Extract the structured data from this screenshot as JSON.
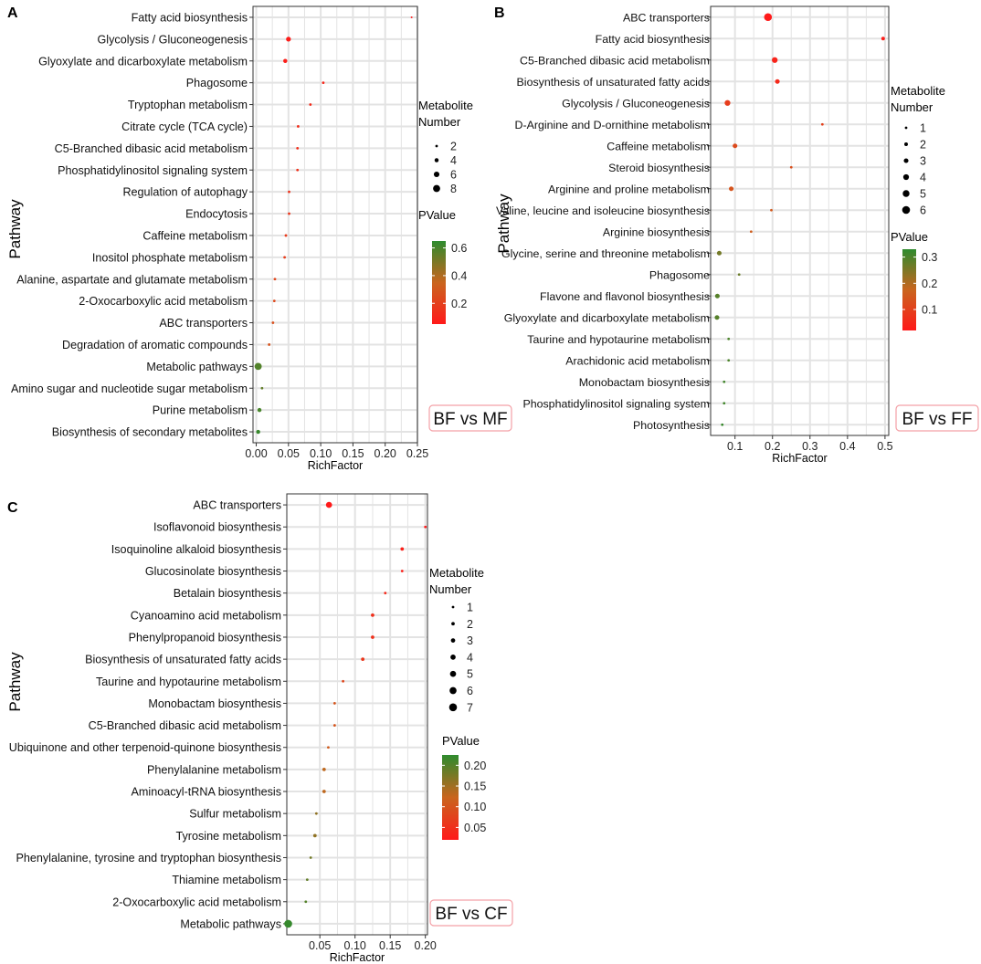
{
  "colors": {
    "low": "#ff1a1a",
    "mid": "#c9651e",
    "high": "#2e8b2e",
    "grid": "#e3e3e3",
    "badge_border": "#f4a0a6"
  },
  "chart_data": [
    {
      "id": "A",
      "type": "scatter",
      "panel_label": "A",
      "title": "",
      "xlabel": "RichFactor",
      "ylabel": "Pathway",
      "xlim": [
        -0.005,
        0.25
      ],
      "xticks": [
        0.0,
        0.05,
        0.1,
        0.15,
        0.2,
        0.25
      ],
      "xtick_labels": [
        "0.00",
        "0.05",
        "0.10",
        "0.15",
        "0.20",
        "0.25"
      ],
      "comparison": "BF vs MF",
      "size_legend_title": [
        "Metabolite",
        "Number"
      ],
      "size_legend": [
        2,
        4,
        6,
        8
      ],
      "size_range": [
        2,
        9
      ],
      "color_legend_title": "PValue",
      "pvalue_range": [
        0.05,
        0.65
      ],
      "color_ticks": [
        0.6,
        0.4,
        0.2
      ],
      "color_tick_labels": [
        "0.6",
        "0.4",
        "0.2"
      ],
      "points": [
        {
          "pathway": "Fatty acid biosynthesis",
          "x": 0.241,
          "number": 1,
          "p": 0.05
        },
        {
          "pathway": "Glycolysis / Gluconeogenesis",
          "x": 0.05,
          "number": 5,
          "p": 0.06
        },
        {
          "pathway": "Glyoxylate and dicarboxylate metabolism",
          "x": 0.045,
          "number": 4,
          "p": 0.07
        },
        {
          "pathway": "Phagosome",
          "x": 0.104,
          "number": 2,
          "p": 0.1
        },
        {
          "pathway": "Tryptophan metabolism",
          "x": 0.084,
          "number": 2,
          "p": 0.12
        },
        {
          "pathway": "Citrate cycle (TCA cycle)",
          "x": 0.065,
          "number": 2,
          "p": 0.13
        },
        {
          "pathway": "C5-Branched dibasic acid metabolism",
          "x": 0.064,
          "number": 2,
          "p": 0.13
        },
        {
          "pathway": "Phosphatidylinositol signaling system",
          "x": 0.064,
          "number": 2,
          "p": 0.14
        },
        {
          "pathway": "Regulation of autophagy",
          "x": 0.051,
          "number": 2,
          "p": 0.15
        },
        {
          "pathway": "Endocytosis",
          "x": 0.051,
          "number": 2,
          "p": 0.16
        },
        {
          "pathway": "Caffeine metabolism",
          "x": 0.046,
          "number": 2,
          "p": 0.18
        },
        {
          "pathway": "Inositol phosphate metabolism",
          "x": 0.044,
          "number": 2,
          "p": 0.19
        },
        {
          "pathway": "Alanine, aspartate and glutamate metabolism",
          "x": 0.029,
          "number": 2,
          "p": 0.22
        },
        {
          "pathway": "2-Oxocarboxylic acid metabolism",
          "x": 0.028,
          "number": 2,
          "p": 0.24
        },
        {
          "pathway": "ABC transporters",
          "x": 0.026,
          "number": 2,
          "p": 0.26
        },
        {
          "pathway": "Degradation of aromatic compounds",
          "x": 0.02,
          "number": 2,
          "p": 0.28
        },
        {
          "pathway": "Metabolic pathways",
          "x": 0.003,
          "number": 8,
          "p": 0.58
        },
        {
          "pathway": "Amino sugar and nucleotide sugar metabolism",
          "x": 0.009,
          "number": 2,
          "p": 0.55
        },
        {
          "pathway": "Purine metabolism",
          "x": 0.005,
          "number": 4,
          "p": 0.6
        },
        {
          "pathway": "Biosynthesis of secondary metabolites",
          "x": 0.003,
          "number": 4,
          "p": 0.63
        }
      ]
    },
    {
      "id": "B",
      "type": "scatter",
      "panel_label": "B",
      "title": "",
      "xlabel": "RichFactor",
      "ylabel": "Pathway",
      "xlim": [
        0.035,
        0.51
      ],
      "xticks": [
        0.1,
        0.2,
        0.3,
        0.4,
        0.5
      ],
      "xtick_labels": [
        "0.1",
        "0.2",
        "0.3",
        "0.4",
        "0.5"
      ],
      "comparison": "BF vs FF",
      "size_legend_title": [
        "Metabolite",
        "Number"
      ],
      "size_legend": [
        1,
        2,
        3,
        4,
        5,
        6
      ],
      "size_range": [
        1,
        6
      ],
      "color_legend_title": "PValue",
      "pvalue_range": [
        0.02,
        0.33
      ],
      "color_ticks": [
        0.3,
        0.2,
        0.1
      ],
      "color_tick_labels": [
        "0.3",
        "0.2",
        "0.1"
      ],
      "points": [
        {
          "pathway": "ABC transporters",
          "x": 0.188,
          "number": 6,
          "p": 0.02
        },
        {
          "pathway": "Fatty acid biosynthesis",
          "x": 0.495,
          "number": 2,
          "p": 0.03
        },
        {
          "pathway": "C5-Branched dibasic acid metabolism",
          "x": 0.206,
          "number": 4,
          "p": 0.04
        },
        {
          "pathway": "Biosynthesis of unsaturated fatty acids",
          "x": 0.213,
          "number": 3,
          "p": 0.05
        },
        {
          "pathway": "Glycolysis / Gluconeogenesis",
          "x": 0.08,
          "number": 4,
          "p": 0.09
        },
        {
          "pathway": "D-Arginine and D-ornithine metabolism",
          "x": 0.333,
          "number": 1,
          "p": 0.1
        },
        {
          "pathway": "Caffeine metabolism",
          "x": 0.1,
          "number": 3,
          "p": 0.12
        },
        {
          "pathway": "Steroid biosynthesis",
          "x": 0.25,
          "number": 1,
          "p": 0.13
        },
        {
          "pathway": "Arginine and proline metabolism",
          "x": 0.09,
          "number": 3,
          "p": 0.14
        },
        {
          "pathway": "Valine, leucine and isoleucine biosynthesis",
          "x": 0.197,
          "number": 1,
          "p": 0.15
        },
        {
          "pathway": "Arginine biosynthesis",
          "x": 0.143,
          "number": 1,
          "p": 0.16
        },
        {
          "pathway": "Glycine, serine and threonine metabolism",
          "x": 0.058,
          "number": 3,
          "p": 0.26
        },
        {
          "pathway": "Phagosome",
          "x": 0.111,
          "number": 1,
          "p": 0.27
        },
        {
          "pathway": "Flavone and flavonol biosynthesis",
          "x": 0.053,
          "number": 3,
          "p": 0.29
        },
        {
          "pathway": "Glyoxylate and dicarboxylate metabolism",
          "x": 0.052,
          "number": 3,
          "p": 0.29
        },
        {
          "pathway": "Taurine and hypotaurine metabolism",
          "x": 0.083,
          "number": 1,
          "p": 0.3
        },
        {
          "pathway": "Arachidonic acid metabolism",
          "x": 0.083,
          "number": 1,
          "p": 0.3
        },
        {
          "pathway": "Monobactam biosynthesis",
          "x": 0.071,
          "number": 1,
          "p": 0.31
        },
        {
          "pathway": "Phosphatidylinositol signaling system",
          "x": 0.071,
          "number": 1,
          "p": 0.31
        },
        {
          "pathway": "Photosynthesis",
          "x": 0.066,
          "number": 1,
          "p": 0.32
        }
      ]
    },
    {
      "id": "C",
      "type": "scatter",
      "panel_label": "C",
      "title": "",
      "xlabel": "RichFactor",
      "ylabel": "Pathway",
      "xlim": [
        0.003,
        0.203
      ],
      "xticks": [
        0.05,
        0.1,
        0.15,
        0.2
      ],
      "xtick_labels": [
        "0.05",
        "0.10",
        "0.15",
        "0.20"
      ],
      "comparison": "BF vs CF",
      "size_legend_title": [
        "Metabolite",
        "Number"
      ],
      "size_legend": [
        1,
        2,
        3,
        4,
        5,
        6,
        7
      ],
      "size_range": [
        1,
        7
      ],
      "color_legend_title": "PValue",
      "pvalue_range": [
        0.02,
        0.225
      ],
      "color_ticks": [
        0.2,
        0.15,
        0.1,
        0.05
      ],
      "color_tick_labels": [
        "0.20",
        "0.15",
        "0.10",
        "0.05"
      ],
      "points": [
        {
          "pathway": "ABC transporters",
          "x": 0.063,
          "number": 5,
          "p": 0.02
        },
        {
          "pathway": "Isoflavonoid biosynthesis",
          "x": 0.2,
          "number": 1,
          "p": 0.02
        },
        {
          "pathway": "Isoquinoline alkaloid biosynthesis",
          "x": 0.167,
          "number": 2,
          "p": 0.03
        },
        {
          "pathway": "Glucosinolate biosynthesis",
          "x": 0.167,
          "number": 1,
          "p": 0.03
        },
        {
          "pathway": "Betalain biosynthesis",
          "x": 0.143,
          "number": 1,
          "p": 0.04
        },
        {
          "pathway": "Cyanoamino acid metabolism",
          "x": 0.125,
          "number": 2,
          "p": 0.05
        },
        {
          "pathway": "Phenylpropanoid biosynthesis",
          "x": 0.125,
          "number": 2,
          "p": 0.05
        },
        {
          "pathway": "Biosynthesis of unsaturated fatty acids",
          "x": 0.111,
          "number": 2,
          "p": 0.06
        },
        {
          "pathway": "Taurine and hypotaurine metabolism",
          "x": 0.083,
          "number": 1,
          "p": 0.08
        },
        {
          "pathway": "Monobactam biosynthesis",
          "x": 0.071,
          "number": 1,
          "p": 0.1
        },
        {
          "pathway": "C5-Branched dibasic acid metabolism",
          "x": 0.071,
          "number": 1,
          "p": 0.1
        },
        {
          "pathway": "Ubiquinone and other terpenoid-quinone biosynthesis",
          "x": 0.062,
          "number": 1,
          "p": 0.11
        },
        {
          "pathway": "Phenylalanine metabolism",
          "x": 0.056,
          "number": 2,
          "p": 0.13
        },
        {
          "pathway": "Aminoacyl-tRNA biosynthesis",
          "x": 0.056,
          "number": 2,
          "p": 0.13
        },
        {
          "pathway": "Sulfur metabolism",
          "x": 0.045,
          "number": 1,
          "p": 0.16
        },
        {
          "pathway": "Tyrosine metabolism",
          "x": 0.043,
          "number": 2,
          "p": 0.16
        },
        {
          "pathway": "Phenylalanine, tyrosine and tryptophan biosynthesis",
          "x": 0.037,
          "number": 1,
          "p": 0.18
        },
        {
          "pathway": "Thiamine metabolism",
          "x": 0.032,
          "number": 1,
          "p": 0.19
        },
        {
          "pathway": "2-Oxocarboxylic acid metabolism",
          "x": 0.03,
          "number": 1,
          "p": 0.2
        },
        {
          "pathway": "Metabolic pathways",
          "x": 0.005,
          "number": 7,
          "p": 0.22
        }
      ]
    }
  ]
}
